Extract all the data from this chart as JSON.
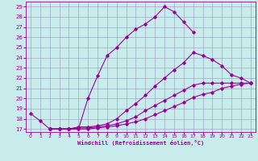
{
  "xlabel": "Windchill (Refroidissement éolien,°C)",
  "xlim": [
    -0.5,
    23.5
  ],
  "ylim": [
    16.7,
    29.5
  ],
  "xticks": [
    0,
    1,
    2,
    3,
    4,
    5,
    6,
    7,
    8,
    9,
    10,
    11,
    12,
    13,
    14,
    15,
    16,
    17,
    18,
    19,
    20,
    21,
    22,
    23
  ],
  "yticks": [
    17,
    18,
    19,
    20,
    21,
    22,
    23,
    24,
    25,
    26,
    27,
    28,
    29
  ],
  "bg_color": "#c8ecec",
  "line_color": "#990099",
  "grid_color": "#9999bb",
  "s1_x": [
    0,
    1,
    2,
    3,
    4,
    5,
    6,
    7,
    8,
    9,
    10,
    11,
    12,
    13,
    14,
    15,
    16,
    17
  ],
  "s1_y": [
    18.5,
    17.8,
    17.0,
    17.0,
    17.0,
    17.0,
    20.0,
    22.2,
    24.2,
    25.0,
    26.0,
    26.8,
    27.3,
    28.0,
    29.0,
    28.5,
    27.5,
    26.5
  ],
  "s2_x": [
    2,
    3,
    4,
    5,
    6,
    7,
    8,
    9,
    10,
    11,
    12,
    13,
    14,
    15,
    16,
    17,
    18,
    19,
    20,
    21,
    22,
    23
  ],
  "s2_y": [
    17.0,
    17.0,
    17.0,
    17.2,
    17.2,
    17.3,
    17.5,
    18.0,
    18.8,
    19.5,
    20.3,
    21.2,
    22.0,
    22.8,
    23.5,
    24.5,
    24.2,
    23.8,
    23.2,
    22.3,
    22.0,
    21.5
  ],
  "s3_x": [
    2,
    3,
    4,
    5,
    6,
    7,
    8,
    9,
    10,
    11,
    12,
    13,
    14,
    15,
    16,
    17,
    18,
    19,
    20,
    21,
    22,
    23
  ],
  "s3_y": [
    17.0,
    17.0,
    17.0,
    17.1,
    17.1,
    17.2,
    17.3,
    17.5,
    17.8,
    18.2,
    18.8,
    19.3,
    19.8,
    20.3,
    20.8,
    21.3,
    21.5,
    21.5,
    21.5,
    21.5,
    21.5,
    21.5
  ],
  "s4_x": [
    2,
    3,
    4,
    5,
    6,
    7,
    8,
    9,
    10,
    11,
    12,
    13,
    14,
    15,
    16,
    17,
    18,
    19,
    20,
    21,
    22,
    23
  ],
  "s4_y": [
    17.0,
    17.0,
    17.0,
    17.0,
    17.0,
    17.1,
    17.2,
    17.3,
    17.5,
    17.7,
    18.0,
    18.4,
    18.8,
    19.2,
    19.6,
    20.1,
    20.4,
    20.6,
    21.0,
    21.2,
    21.4,
    21.5
  ]
}
